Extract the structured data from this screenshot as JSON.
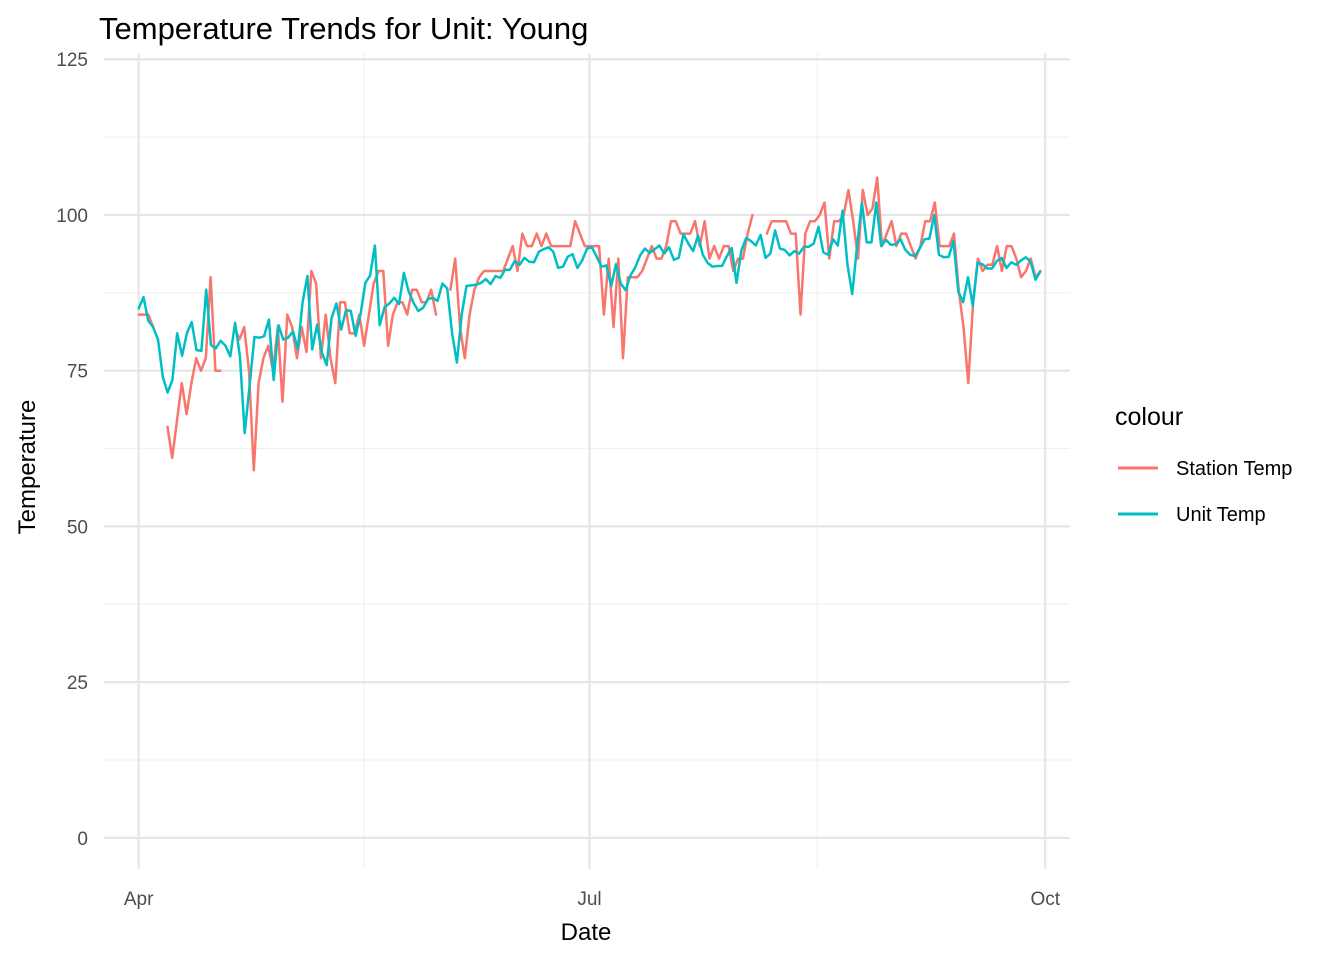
{
  "chart_data": {
    "type": "line",
    "title": "Temperature Trends for Unit: Young",
    "xlabel": "Date",
    "ylabel": "Temperature",
    "x_start": "2021-04-01",
    "x_end": "2021-09-30",
    "xlim": [
      "2021-03-25",
      "2021-10-06"
    ],
    "ylim": [
      -5,
      126
    ],
    "y_ticks": [
      0,
      25,
      50,
      75,
      100,
      125
    ],
    "x_ticks": [
      {
        "date": "2021-04-01",
        "label": "Apr"
      },
      {
        "date": "2021-07-01",
        "label": "Jul"
      },
      {
        "date": "2021-10-01",
        "label": "Oct"
      }
    ],
    "grid": true,
    "legend": {
      "title": "colour",
      "position": "right"
    },
    "series": [
      {
        "name": "Station Temp",
        "color": "#F8766D",
        "values": [
          84,
          84,
          84,
          82,
          null,
          null,
          66,
          61,
          67,
          73,
          68,
          73,
          77,
          75,
          77,
          90,
          75,
          75,
          null,
          null,
          82,
          80,
          82,
          75,
          59,
          73,
          77,
          79,
          75,
          82,
          70,
          84,
          82,
          77,
          82,
          78,
          91,
          89,
          77,
          84,
          77,
          73,
          86,
          86,
          81,
          81,
          84,
          79,
          84,
          89,
          91,
          91,
          79,
          84,
          86,
          86,
          84,
          88,
          88,
          86,
          86,
          88,
          84,
          null,
          null,
          88,
          93,
          82,
          77,
          84,
          88,
          90,
          91,
          91,
          91,
          91,
          91,
          93,
          95,
          91,
          97,
          95,
          95,
          97,
          95,
          97,
          95,
          95,
          95,
          95,
          95,
          99,
          97,
          95,
          95,
          95,
          95,
          84,
          93,
          82,
          93,
          77,
          90,
          90,
          90,
          91,
          93,
          95,
          93,
          93,
          95,
          99,
          99,
          97,
          97,
          97,
          99,
          95,
          99,
          93,
          95,
          93,
          95,
          95,
          91,
          93,
          93,
          97,
          100,
          null,
          null,
          97,
          99,
          99,
          99,
          99,
          97,
          97,
          84,
          97,
          99,
          99,
          100,
          102,
          93,
          99,
          99,
          100,
          104,
          99,
          93,
          104,
          100,
          101,
          106,
          95,
          97,
          99,
          95,
          97,
          97,
          95,
          93,
          95,
          99,
          99,
          102,
          95,
          95,
          95,
          97,
          88,
          82,
          73,
          86,
          93,
          91,
          92,
          92,
          95,
          91,
          95,
          95,
          93,
          90,
          91,
          93,
          90,
          91
        ]
      },
      {
        "name": "Unit Temp",
        "color": "#00BFC4",
        "values": [
          85,
          86.8,
          83,
          82,
          80,
          74,
          71.5,
          73.5,
          81,
          77.4,
          81,
          82.8,
          78.3,
          78.2,
          88,
          79.1,
          78.6,
          79.8,
          79,
          77.3,
          82.7,
          77.3,
          65,
          72.6,
          80.4,
          80.3,
          80.5,
          83.2,
          73.5,
          82.3,
          80,
          80.3,
          81.3,
          78.5,
          86,
          90.2,
          78.4,
          82.4,
          77.9,
          75.9,
          83.4,
          85.8,
          81.6,
          84.7,
          84.6,
          80.6,
          84,
          89.1,
          90.3,
          95.1,
          82.3,
          85.2,
          85.8,
          86.7,
          85.7,
          90.7,
          87.7,
          85.9,
          84.6,
          85.1,
          86.5,
          86.7,
          86.2,
          89,
          88.2,
          81,
          76.3,
          84,
          88.6,
          88.7,
          88.8,
          89.1,
          89.7,
          88.9,
          90.2,
          89.9,
          91.2,
          91.2,
          92.6,
          92,
          93.1,
          92.5,
          92.4,
          94.1,
          94.5,
          94.8,
          94.1,
          91.5,
          91.7,
          93.3,
          93.7,
          91.5,
          92.7,
          94.6,
          94.8,
          93.3,
          91.7,
          91.9,
          88.6,
          92.1,
          89,
          87.9,
          90.3,
          91.6,
          93.5,
          94.6,
          93.9,
          94.5,
          95.1,
          93.8,
          94.8,
          92.8,
          93.1,
          96.9,
          95.4,
          94.2,
          96.7,
          93.6,
          92.3,
          91.7,
          91.8,
          91.8,
          93.4,
          94.7,
          89.1,
          94.3,
          96.3,
          95.8,
          95.1,
          96.8,
          93.1,
          93.8,
          97.5,
          94.6,
          94.4,
          93.5,
          94.2,
          93.8,
          94.9,
          94.9,
          95.4,
          98.1,
          94,
          93.6,
          96.1,
          95.1,
          100.7,
          92.1,
          87.3,
          95,
          102,
          95.6,
          95.6,
          102,
          95,
          96,
          95.2,
          95.3,
          96.1,
          94.4,
          93.6,
          93.4,
          94.6,
          96.1,
          96.2,
          100,
          93.6,
          93.2,
          93.3,
          95.8,
          87.7,
          86,
          90,
          85.4,
          92.3,
          92.1,
          91.4,
          91.4,
          92.6,
          93.1,
          91.5,
          92.4,
          92,
          92.7,
          93.2,
          92.5,
          89.6,
          90.9
        ]
      }
    ]
  }
}
